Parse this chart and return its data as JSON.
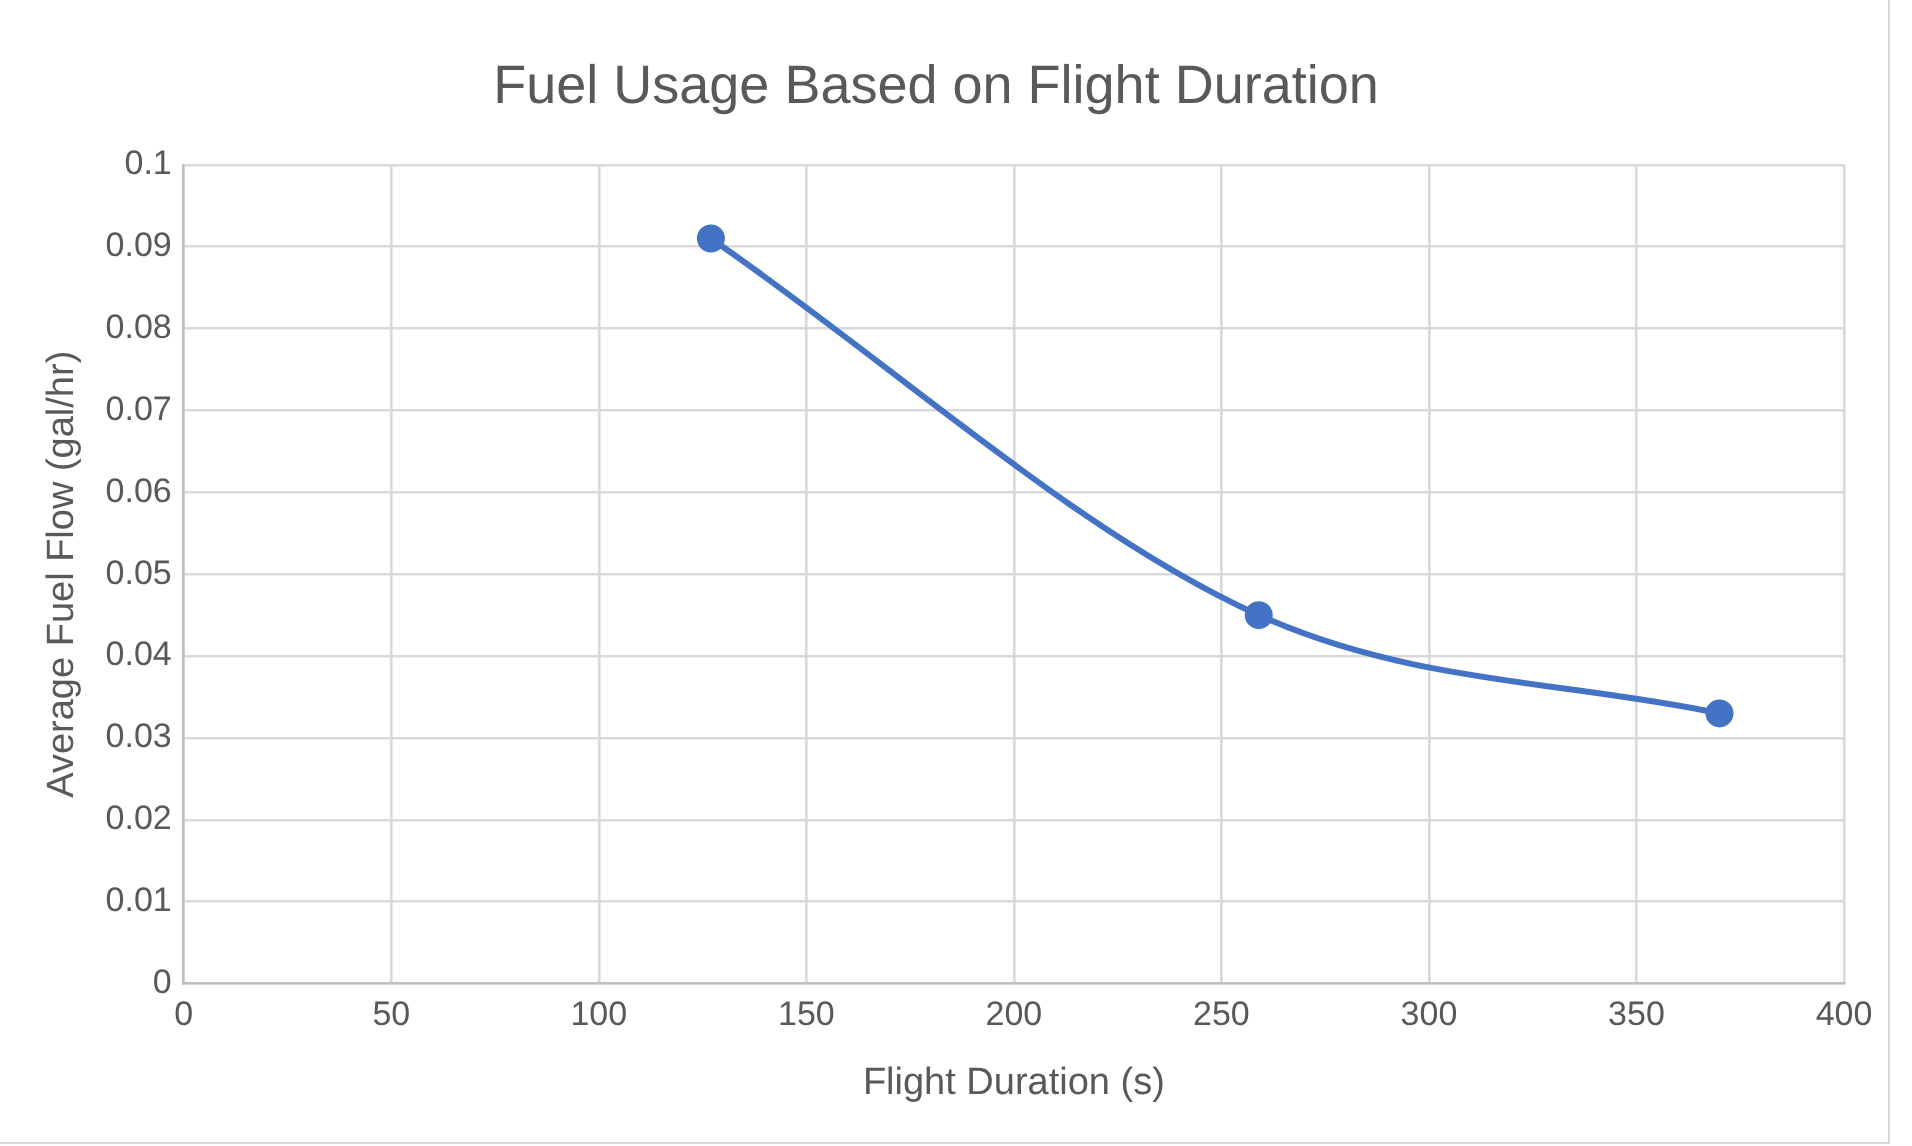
{
  "chart_data": {
    "type": "line",
    "title": "Fuel Usage Based on Flight Duration",
    "xlabel": "Flight Duration (s)",
    "ylabel": "Average Fuel Flow (gal/hr)",
    "series": [
      {
        "color": "#4472c4",
        "x": [
          127,
          259,
          370
        ],
        "values": [
          0.091,
          0.045,
          0.033
        ]
      }
    ],
    "xlim": [
      0,
      400
    ],
    "xticks": [
      0,
      50,
      100,
      150,
      200,
      250,
      300,
      350,
      400
    ],
    "ylim": [
      0,
      0.1
    ],
    "yticks": [
      0,
      0.01,
      0.02,
      0.03,
      0.04,
      0.05,
      0.06,
      0.07,
      0.08,
      0.09,
      0.1
    ],
    "grid": true,
    "marker": "circle",
    "line_style": "solid",
    "legend": false
  }
}
